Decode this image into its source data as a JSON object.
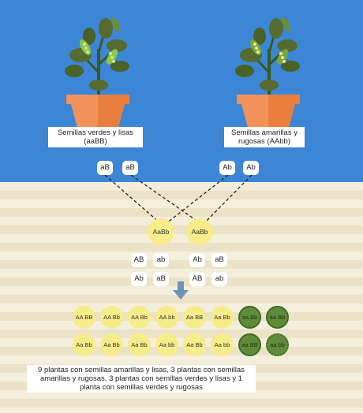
{
  "parents": {
    "left": {
      "label": "Semillas verdes y lisas (aaBB)",
      "gametes": [
        "aB",
        "aB"
      ]
    },
    "right": {
      "label": "Semillas amarillas y rugosas (AAbb)",
      "gametes": [
        "Ab",
        "Ab"
      ]
    }
  },
  "f1": [
    "AaBb",
    "AaBb"
  ],
  "f1_gametes": {
    "left": [
      "AB",
      "ab",
      "Ab",
      "aB"
    ],
    "right": [
      "Ab",
      "aB",
      "AB",
      "ab"
    ]
  },
  "f2": {
    "row1": [
      "AA BB",
      "AA Bb",
      "AA Bb",
      "AA bb",
      "Aa BB",
      "Aa Bb",
      "aa Bb",
      "aa Bb"
    ],
    "row2": [
      "Aa Bb",
      "Aa Bb",
      "Aa Bb",
      "Aa bb",
      "Aa Bb",
      "Aa bb",
      "aa BB",
      "aa bb"
    ]
  },
  "result_text": "9 plantas con semillas amarillas y lisas, 3 plantas con semillas amarillas y rugosas, 3 plantas con semillas verdes y lisas y 1 planta con semillas verdes y rugosas",
  "colors": {
    "sky": "#3d86d6",
    "yellow_seed": "#f7ec8a",
    "green_seed": "#5f8c3a",
    "pot": "#f0925a",
    "arrow": "#6f93b8"
  },
  "icons": [
    "pea-plant-icon",
    "flower-pot-icon",
    "down-arrow-icon"
  ]
}
